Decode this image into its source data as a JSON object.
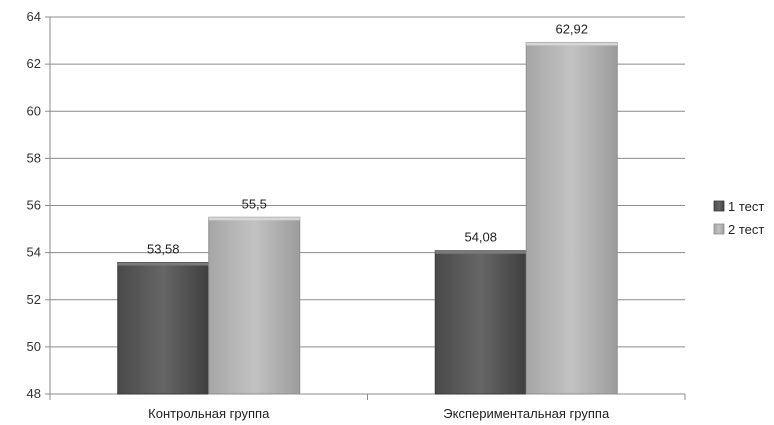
{
  "chart_data": {
    "type": "bar",
    "categories": [
      "Контрольная группа",
      "Экспериментальная группа"
    ],
    "series": [
      {
        "name": "1 тест",
        "values": [
          53.58,
          54.08
        ],
        "labels": [
          "53,58",
          "54,08"
        ],
        "color": "#5a5a5a"
      },
      {
        "name": "2 тест",
        "values": [
          55.5,
          62.92
        ],
        "labels": [
          "55,5",
          "62,92"
        ],
        "color": "#b4b4b4"
      }
    ],
    "ylim": [
      48,
      64
    ],
    "yticks": [
      48,
      50,
      52,
      54,
      56,
      58,
      60,
      62,
      64
    ],
    "title": "",
    "xlabel": "",
    "ylabel": "",
    "grid": true,
    "legend": "right"
  }
}
